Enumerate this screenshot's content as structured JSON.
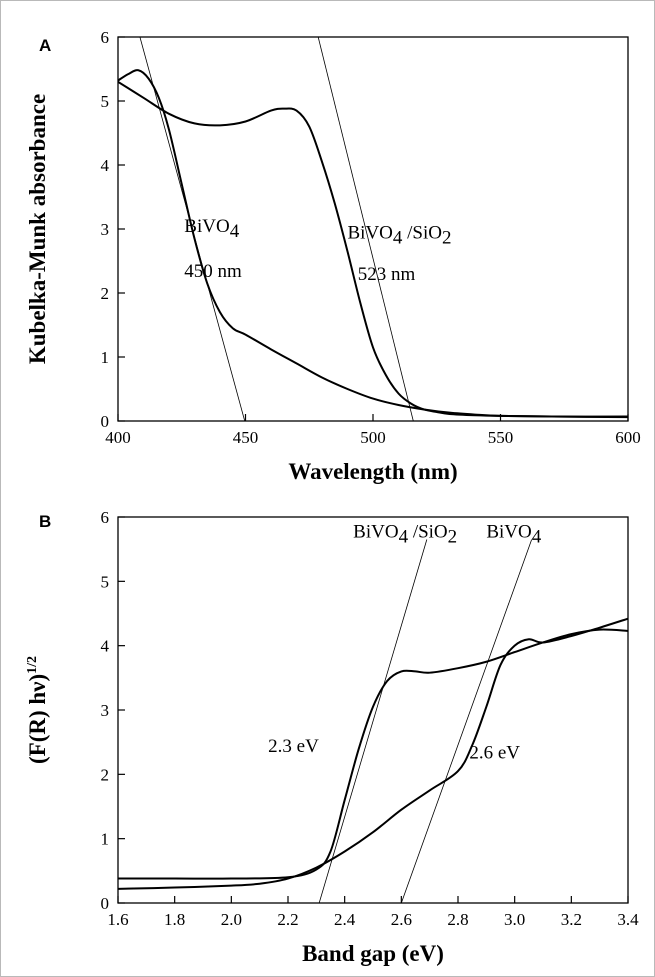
{
  "chart_data": [
    {
      "panel": "A",
      "type": "line",
      "xlabel": "Wavelength (nm)",
      "ylabel": "Kubelka-Munk absorbance",
      "xlim": [
        400,
        600
      ],
      "ylim": [
        0,
        6
      ],
      "xticks": [
        400,
        450,
        500,
        550,
        600
      ],
      "yticks": [
        0,
        1,
        2,
        3,
        4,
        5,
        6
      ],
      "grid": false,
      "series": [
        {
          "name": "BiVO4",
          "x": [
            400,
            404,
            408,
            412,
            416,
            420,
            425,
            430,
            435,
            440,
            445,
            450,
            460,
            470,
            480,
            490,
            500,
            510,
            520,
            530,
            540,
            550,
            570,
            600
          ],
          "y": [
            5.32,
            5.42,
            5.48,
            5.35,
            5.05,
            4.55,
            3.7,
            2.85,
            2.15,
            1.7,
            1.45,
            1.35,
            1.12,
            0.9,
            0.68,
            0.5,
            0.35,
            0.25,
            0.18,
            0.13,
            0.1,
            0.08,
            0.07,
            0.07
          ]
        },
        {
          "name": "BiVO4/SiO2",
          "x": [
            400,
            410,
            420,
            430,
            440,
            450,
            460,
            465,
            470,
            475,
            480,
            485,
            490,
            495,
            500,
            505,
            510,
            515,
            520,
            525,
            530,
            540,
            550,
            570,
            600
          ],
          "y": [
            5.3,
            5.05,
            4.8,
            4.65,
            4.62,
            4.68,
            4.85,
            4.88,
            4.85,
            4.6,
            4.05,
            3.4,
            2.65,
            1.85,
            1.15,
            0.72,
            0.43,
            0.27,
            0.18,
            0.14,
            0.11,
            0.09,
            0.08,
            0.07,
            0.06
          ]
        }
      ],
      "tangent_lines": [
        {
          "x": [
            408.6,
            449.7
          ],
          "y": [
            6.0,
            0.0
          ]
        },
        {
          "x": [
            478.5,
            515.8
          ],
          "y": [
            6.0,
            0.0
          ]
        }
      ],
      "annotations": [
        {
          "label": "BiVO",
          "sub": "4",
          "suffix": "",
          "x": 426,
          "y": 2.95
        },
        {
          "label": "450 nm",
          "x": 426,
          "y": 2.25
        },
        {
          "label": "BiVO",
          "sub": "4",
          "suffix": " /SiO",
          "sub2": "2",
          "x": 490,
          "y": 2.85
        },
        {
          "label": "523 nm",
          "x": 494,
          "y": 2.2
        }
      ]
    },
    {
      "panel": "B",
      "type": "line",
      "xlabel": "Band gap (eV)",
      "ylabel": "(F(R) hν)",
      "ylabel_sup": "1/2",
      "xlim": [
        1.6,
        3.4
      ],
      "ylim": [
        0,
        6
      ],
      "xticks": [
        1.6,
        1.8,
        2.0,
        2.2,
        2.4,
        2.6,
        2.8,
        3.0,
        3.2,
        3.4
      ],
      "xtick_labels": [
        "1.6",
        "1.8",
        "2.0",
        "2.2",
        "2.4",
        "2.6",
        "2.8",
        "3.0",
        "3.2",
        "3.4"
      ],
      "yticks": [
        0,
        1,
        2,
        3,
        4,
        5,
        6
      ],
      "grid": false,
      "series": [
        {
          "name": "BiVO4",
          "x": [
            1.6,
            1.8,
            2.0,
            2.1,
            2.2,
            2.3,
            2.4,
            2.5,
            2.6,
            2.7,
            2.8,
            2.85,
            2.9,
            2.95,
            3.0,
            3.05,
            3.1,
            3.2,
            3.3,
            3.4
          ],
          "y": [
            0.22,
            0.24,
            0.27,
            0.3,
            0.38,
            0.55,
            0.8,
            1.1,
            1.45,
            1.75,
            2.05,
            2.45,
            3.05,
            3.7,
            4.0,
            4.1,
            4.05,
            4.15,
            4.28,
            4.42
          ]
        },
        {
          "name": "BiVO4/SiO2",
          "x": [
            1.6,
            1.8,
            2.0,
            2.2,
            2.3,
            2.35,
            2.4,
            2.45,
            2.5,
            2.55,
            2.6,
            2.65,
            2.7,
            2.8,
            2.9,
            3.0,
            3.1,
            3.2,
            3.3,
            3.4
          ],
          "y": [
            0.38,
            0.38,
            0.38,
            0.4,
            0.52,
            0.8,
            1.6,
            2.4,
            3.05,
            3.45,
            3.6,
            3.6,
            3.58,
            3.65,
            3.75,
            3.9,
            4.05,
            4.18,
            4.25,
            4.23
          ]
        }
      ],
      "tangent_lines": [
        {
          "x": [
            2.31,
            2.69
          ],
          "y": [
            0.0,
            5.65
          ]
        },
        {
          "x": [
            2.6,
            3.06
          ],
          "y": [
            0.0,
            5.65
          ]
        }
      ],
      "annotations": [
        {
          "label": "BiVO",
          "sub": "4",
          "suffix": " /SiO",
          "sub2": "2",
          "x": 2.43,
          "y": 5.68
        },
        {
          "label": "BiVO",
          "sub": "4",
          "suffix": "",
          "x": 2.9,
          "y": 5.68
        },
        {
          "label": "2.3 eV",
          "x": 2.13,
          "y": 2.35
        },
        {
          "label": "2.6 eV",
          "x": 2.84,
          "y": 2.25
        }
      ]
    }
  ]
}
